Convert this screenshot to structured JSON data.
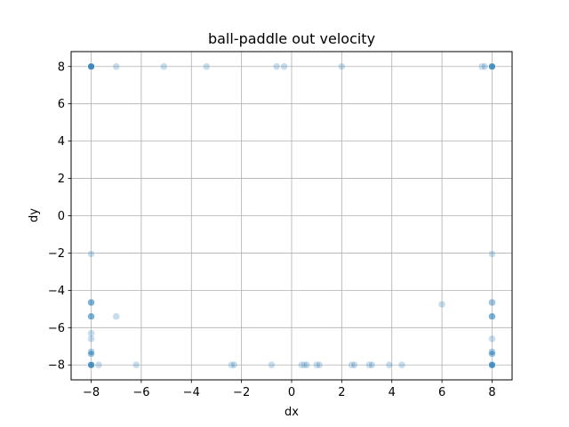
{
  "chart_data": {
    "type": "scatter",
    "title": "ball-paddle out velocity",
    "xlabel": "dx",
    "ylabel": "dy",
    "xlim": [
      -8.8,
      8.8
    ],
    "ylim": [
      -8.8,
      8.8
    ],
    "xticks": [
      -8,
      -6,
      -4,
      -2,
      0,
      2,
      4,
      6,
      8
    ],
    "yticks": [
      -8,
      -6,
      -4,
      -2,
      0,
      2,
      4,
      6,
      8
    ],
    "xtick_labels": [
      "−8",
      "−6",
      "−4",
      "−2",
      "0",
      "2",
      "4",
      "6",
      "8"
    ],
    "ytick_labels": [
      "−8",
      "−6",
      "−4",
      "−2",
      "0",
      "2",
      "4",
      "6",
      "8"
    ],
    "grid": true,
    "marker_color": "#1f77b4",
    "marker_alpha": 0.25,
    "series": [
      {
        "points": [
          [
            -8,
            8
          ],
          [
            -8,
            8
          ],
          [
            -8,
            8
          ],
          [
            -8,
            8
          ],
          [
            -8,
            8
          ],
          [
            -8,
            8
          ],
          [
            -7.0,
            8
          ],
          [
            -5.1,
            8
          ],
          [
            -3.4,
            8
          ],
          [
            -0.6,
            8
          ],
          [
            -0.3,
            8
          ],
          [
            2.0,
            8
          ],
          [
            7.6,
            8
          ],
          [
            7.7,
            8
          ],
          [
            8,
            8
          ],
          [
            8,
            8
          ],
          [
            8,
            8
          ],
          [
            8,
            8
          ],
          [
            8,
            8
          ],
          [
            -8,
            -2.05
          ],
          [
            8,
            -2.05
          ],
          [
            -8,
            -4.65
          ],
          [
            -8,
            -4.65
          ],
          [
            -8,
            -4.65
          ],
          [
            8,
            -4.65
          ],
          [
            8,
            -4.65
          ],
          [
            -8,
            -5.4
          ],
          [
            -8,
            -5.4
          ],
          [
            -8,
            -5.4
          ],
          [
            8,
            -5.4
          ],
          [
            8,
            -5.4
          ],
          [
            8,
            -5.4
          ],
          [
            -7.0,
            -5.4
          ],
          [
            6.0,
            -4.75
          ],
          [
            -8,
            -6.3
          ],
          [
            -8,
            -6.6
          ],
          [
            8,
            -6.6
          ],
          [
            -8,
            -7.3
          ],
          [
            -8,
            -7.3
          ],
          [
            -8,
            -7.4
          ],
          [
            -8,
            -7.4
          ],
          [
            8,
            -7.3
          ],
          [
            8,
            -7.3
          ],
          [
            8,
            -7.4
          ],
          [
            8,
            -7.4
          ],
          [
            -8,
            -8
          ],
          [
            -8,
            -8
          ],
          [
            -8,
            -8
          ],
          [
            -8,
            -8
          ],
          [
            -8,
            -8
          ],
          [
            -7.7,
            -8
          ],
          [
            -6.2,
            -8
          ],
          [
            -2.4,
            -8
          ],
          [
            -2.3,
            -8
          ],
          [
            -0.8,
            -8
          ],
          [
            0.4,
            -8
          ],
          [
            0.5,
            -8
          ],
          [
            0.6,
            -8
          ],
          [
            1.0,
            -8
          ],
          [
            1.1,
            -8
          ],
          [
            2.4,
            -8
          ],
          [
            2.5,
            -8
          ],
          [
            3.1,
            -8
          ],
          [
            3.2,
            -8
          ],
          [
            3.9,
            -8
          ],
          [
            4.4,
            -8
          ],
          [
            8,
            -8
          ],
          [
            8,
            -8
          ],
          [
            8,
            -8
          ],
          [
            8,
            -8
          ],
          [
            8,
            -8
          ]
        ]
      }
    ]
  }
}
